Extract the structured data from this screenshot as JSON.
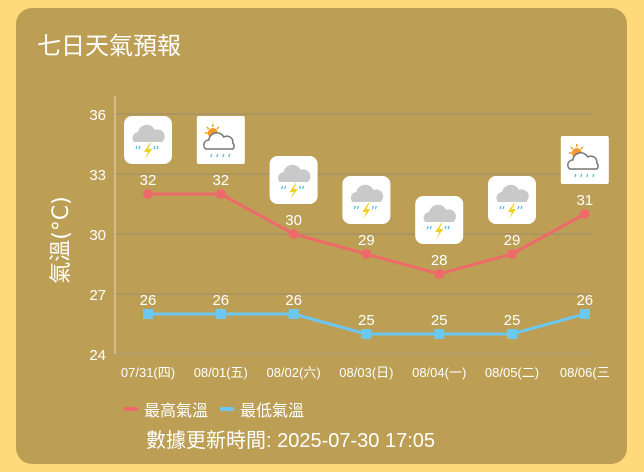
{
  "title": "七日天氣預報",
  "chart_data": {
    "type": "line",
    "ylabel": "氣溫(°C)",
    "ylim": [
      24,
      36
    ],
    "yticks": [
      24,
      27,
      30,
      33,
      36
    ],
    "grid": true,
    "categories": [
      "07/31(四)",
      "08/01(五)",
      "08/02(六)",
      "08/03(日)",
      "08/04(一)",
      "08/05(二)",
      "08/06(三"
    ],
    "icons": [
      "thunderstorm-rain-icon",
      "partly-cloudy-rain-icon",
      "thunderstorm-rain-icon",
      "thunderstorm-rain-icon",
      "thunderstorm-rain-icon",
      "thunderstorm-rain-icon",
      "partly-cloudy-rain-icon"
    ],
    "series": [
      {
        "name": "最高氣溫",
        "color": "#EE6A6A",
        "values": [
          32,
          32,
          30,
          29,
          28,
          29,
          31
        ]
      },
      {
        "name": "最低氣溫",
        "color": "#6CC8F0",
        "values": [
          26,
          26,
          26,
          25,
          25,
          25,
          26
        ]
      }
    ],
    "legend": "bottom-left"
  },
  "updated": "數據更新時間: 2025-07-30 17:05"
}
